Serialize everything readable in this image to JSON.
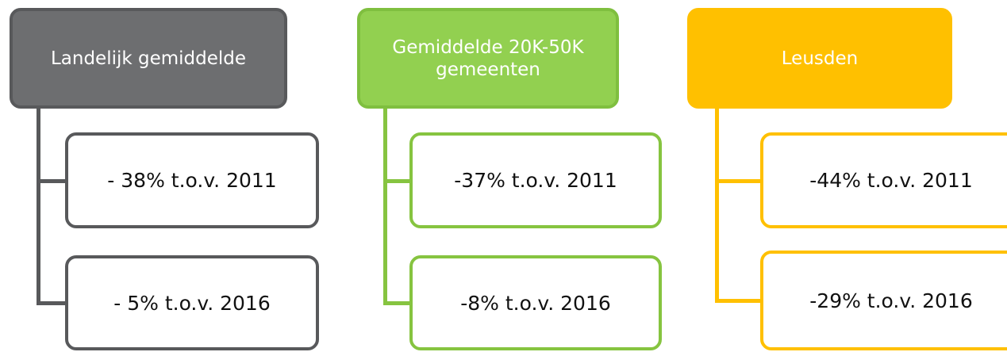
{
  "columns": [
    {
      "title": "Landelijk gemiddelde",
      "items": [
        "- 38% t.o.v. 2011",
        "- 5% t.o.v. 2016"
      ]
    },
    {
      "title": "Gemiddelde 20K-50K gemeenten",
      "items": [
        "-37% t.o.v. 2011",
        "-8% t.o.v. 2016"
      ]
    },
    {
      "title": "Leusden",
      "items": [
        "-44% t.o.v. 2011",
        "-29% t.o.v. 2016"
      ]
    }
  ]
}
